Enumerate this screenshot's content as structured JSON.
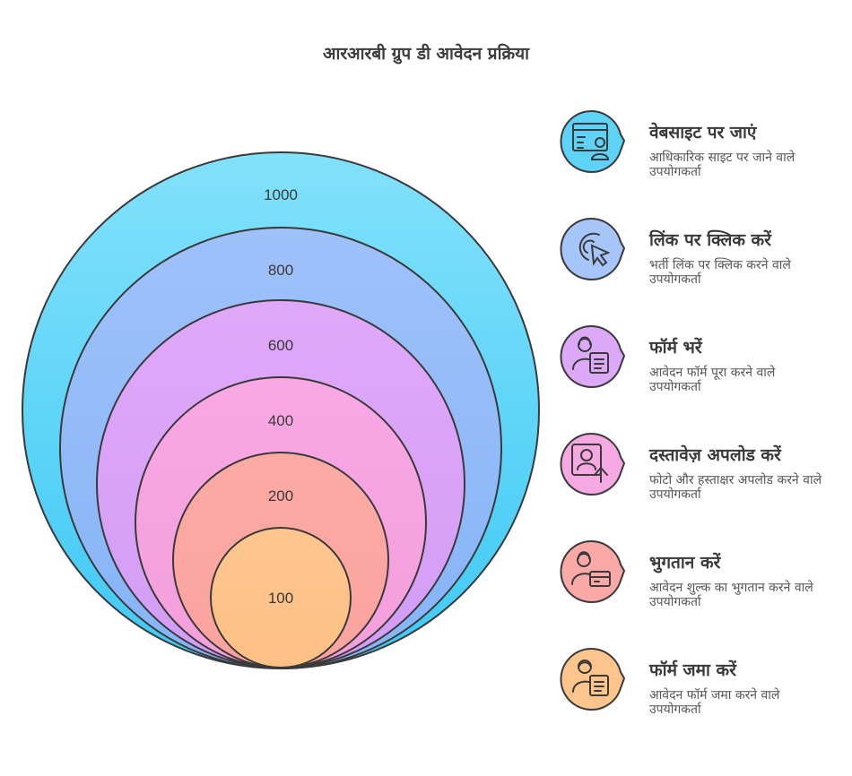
{
  "title": "आरआरबी ग्रुप डी आवेदन प्रक्रिया",
  "rings": [
    {
      "label": "1000",
      "color": "#3fc9f5"
    },
    {
      "label": "800",
      "color": "#96bff9"
    },
    {
      "label": "600",
      "color": "#d8a3f7"
    },
    {
      "label": "400",
      "color": "#f6a3e0"
    },
    {
      "label": "200",
      "color": "#fca9a4"
    },
    {
      "label": "100",
      "color": "#fdc48a"
    }
  ],
  "steps": [
    {
      "title": "वेबसाइट पर जाएं",
      "desc": "आधिकारिक साइट पर जाने वाले उपयोगकर्ता",
      "color": "#5fd2f8",
      "icon": "website-user-icon"
    },
    {
      "title": "लिंक पर क्लिक करें",
      "desc": "भर्ती लिंक पर क्लिक करने वाले उपयोगकर्ता",
      "color": "#a6c6fa",
      "icon": "cursor-click-icon"
    },
    {
      "title": "फॉर्म भरें",
      "desc": "आवेदन फॉर्म पूरा करने वाले उपयोगकर्ता",
      "color": "#dca9f8",
      "icon": "person-form-icon"
    },
    {
      "title": "दस्तावेज़ अपलोड करें",
      "desc": "फोटो और हस्ताक्षर अपलोड करने वाले उपयोगकर्ता",
      "color": "#f5a8e2",
      "icon": "photo-upload-icon"
    },
    {
      "title": "भुगतान करें",
      "desc": "आवेदन शुल्क का भुगतान करने वाले उपयोगकर्ता",
      "color": "#fba9a6",
      "icon": "payment-card-icon"
    },
    {
      "title": "फॉर्म जमा करें",
      "desc": "आवेदन फॉर्म जमा करने वाले उपयोगकर्ता",
      "color": "#fdc58c",
      "icon": "submit-form-icon"
    }
  ]
}
